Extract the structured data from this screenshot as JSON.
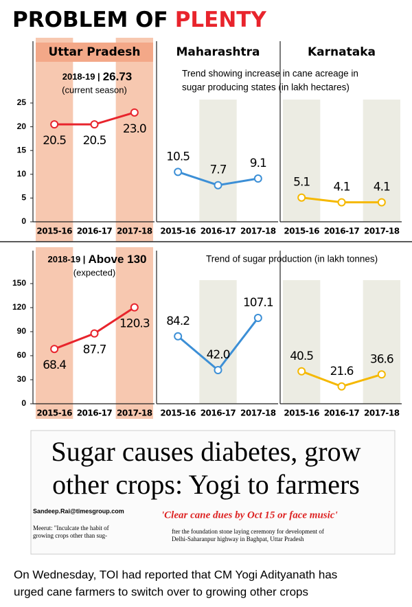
{
  "header": {
    "title": "PROBLEM OF",
    "title_highlight": "PLENTY"
  },
  "chart_data": [
    {
      "type": "line",
      "title": "Uttar Pradesh",
      "categories": [
        "2015-16",
        "2016-17",
        "2017-18"
      ],
      "series": [
        {
          "color": "#e8242c",
          "values": [
            20.5,
            20.5,
            23.0
          ],
          "value_labels": [
            "20.5",
            "20.5",
            "23.0"
          ]
        }
      ],
      "ylim": [
        0,
        25
      ],
      "yticks": [
        0,
        5,
        10,
        15,
        20,
        25
      ],
      "note": "2018-19 |",
      "note_value": "26.73",
      "note_sub": "(current season)"
    },
    {
      "type": "line",
      "title": "Maharashtra",
      "categories": [
        "2015-16",
        "2016-17",
        "2017-18"
      ],
      "series": [
        {
          "color": "#3c8fd6",
          "values": [
            10.5,
            7.7,
            9.1
          ]
        }
      ],
      "ylim": [
        0,
        25
      ],
      "annotation_lines": [
        "Trend showing increase in cane acreage in",
        "sugar producing states (in lakh hectares)"
      ]
    },
    {
      "type": "line",
      "title": "Karnataka",
      "categories": [
        "2015-16",
        "2016-17",
        "2017-18"
      ],
      "series": [
        {
          "color": "#f5b800",
          "values": [
            5.1,
            4.1,
            4.1
          ]
        }
      ],
      "ylim": [
        0,
        25
      ]
    },
    {
      "type": "line",
      "categories": [
        "2015-16",
        "2016-17",
        "2017-18"
      ],
      "series": [
        {
          "color": "#e8242c",
          "values": [
            68.4,
            87.7,
            120.3
          ]
        }
      ],
      "ylim": [
        0,
        150
      ],
      "yticks": [
        0,
        30,
        60,
        90,
        120,
        150
      ],
      "note": "2018-19 |",
      "note_value": "Above 130",
      "note_sub": "(expected)"
    },
    {
      "type": "line",
      "categories": [
        "2015-16",
        "2016-17",
        "2017-18"
      ],
      "series": [
        {
          "color": "#3c8fd6",
          "values": [
            84.2,
            42.0,
            107.1
          ],
          "value_labels": [
            "84.2",
            "42.0",
            "107.1"
          ]
        }
      ],
      "ylim": [
        0,
        150
      ],
      "annotation_lines": [
        "Trend of sugar production (in lakh tonnes)"
      ]
    },
    {
      "type": "line",
      "categories": [
        "2015-16",
        "2016-17",
        "2017-18"
      ],
      "series": [
        {
          "color": "#f5b800",
          "values": [
            40.5,
            21.6,
            36.6
          ]
        }
      ],
      "ylim": [
        0,
        150
      ]
    }
  ],
  "clipping": {
    "headline_lines": [
      "Sugar causes diabetes, grow",
      "other crops: Yogi to farmers"
    ],
    "byline": "Sandeep.Rai@timesgroup.com",
    "subhead": "'Clear cane dues by Oct 15 or face music'",
    "body_left": [
      "Meerut: \"Inculcate the habit of",
      "growing crops other than sug-"
    ],
    "body_right": [
      "fter the foundation stone laying ceremony for development of",
      "Delhi-Saharanpur highway in Baghpat, Uttar Pradesh"
    ]
  },
  "caption_lines": [
    "On Wednesday, TOI had reported that CM Yogi Adityanath has",
    "urged cane farmers to switch over to growing other crops"
  ]
}
